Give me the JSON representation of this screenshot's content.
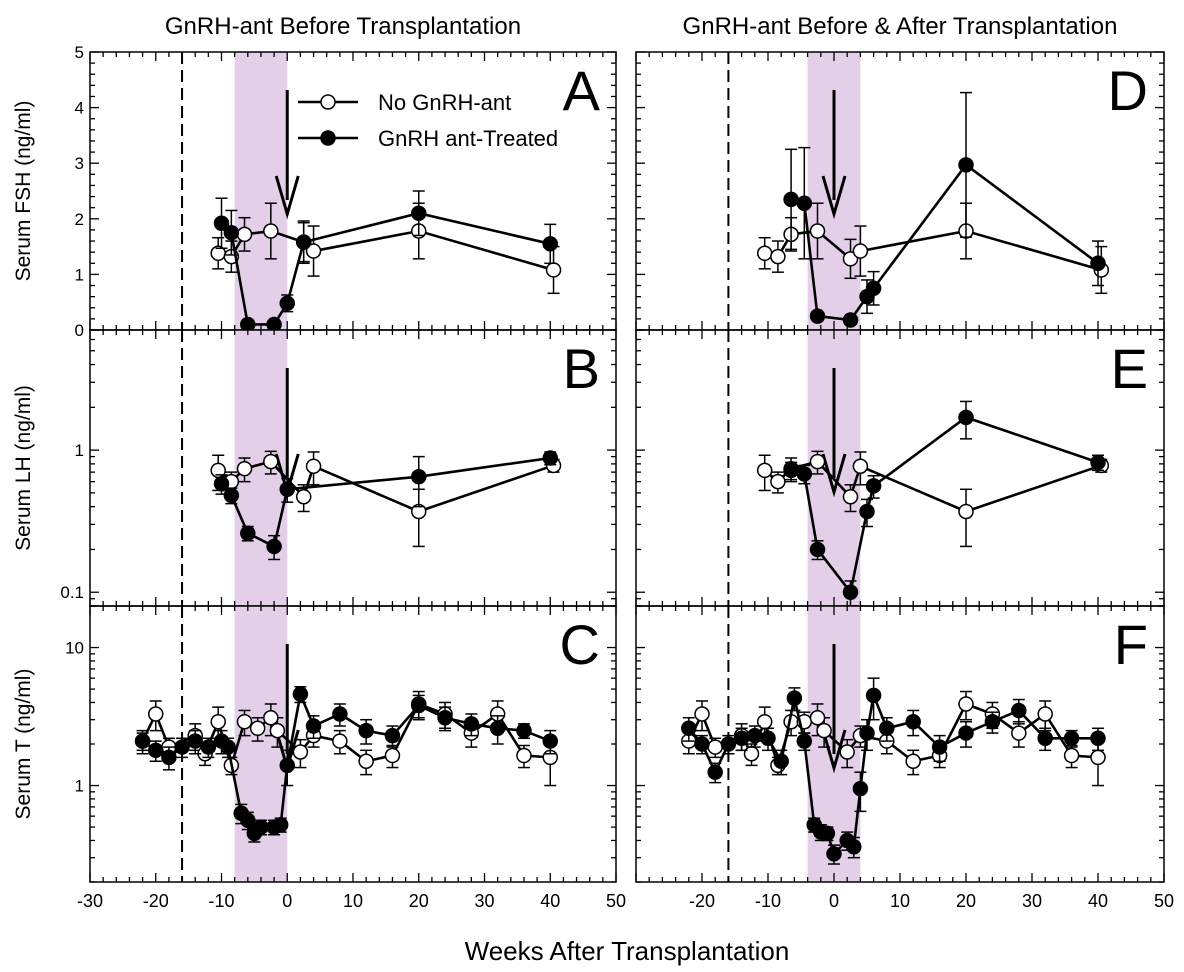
{
  "figure": {
    "title_left": "GnRH-ant Before Transplantation",
    "title_right": "GnRH-ant Before & After Transplantation",
    "xlabel": "Weeks After Transplantation",
    "legend": {
      "open": "No GnRH-ant",
      "filled": "GnRH ant-Treated"
    },
    "colors": {
      "shade": "#e3cfe8",
      "line": "#000000",
      "open_fill": "#ffffff",
      "filled_fill": "#000000"
    }
  },
  "chart_data": [
    {
      "type": "line",
      "panel": "A",
      "ylabel": "Serum FSH (ng/ml)",
      "yscale": "linear",
      "xlim": [
        -30,
        50
      ],
      "ylim": [
        0,
        5
      ],
      "yticks": [
        0,
        1,
        2,
        3,
        4,
        5
      ],
      "shade": [
        -8,
        0
      ],
      "vline": -16,
      "arrow_x": 0,
      "series": [
        {
          "name": "No GnRH-ant",
          "marker": "open",
          "points": [
            [
              -10.5,
              1.38,
              0.28
            ],
            [
              -8.5,
              1.32,
              0.28
            ],
            [
              -6.5,
              1.72,
              0.3
            ],
            [
              -2.5,
              1.78,
              0.5
            ],
            [
              2.5,
              1.58,
              0.35
            ],
            [
              4,
              1.42,
              0.45
            ],
            [
              20,
              1.78,
              0.5
            ],
            [
              40.5,
              1.08,
              0.42
            ]
          ]
        },
        {
          "name": "GnRH ant-Treated",
          "marker": "filled",
          "points": [
            [
              -10,
              1.92,
              0.45
            ],
            [
              -8.5,
              1.75,
              0.4
            ],
            [
              -6,
              0.1,
              0.05
            ],
            [
              -2,
              0.1,
              0.05
            ],
            [
              0,
              0.48,
              0.15
            ],
            [
              2.5,
              1.58,
              0.38
            ],
            [
              20,
              2.1,
              0.4
            ],
            [
              40,
              1.55,
              0.35
            ]
          ]
        }
      ]
    },
    {
      "type": "line",
      "panel": "B",
      "ylabel": "Serum LH (ng/ml)",
      "yscale": "log",
      "xlim": [
        -30,
        50
      ],
      "ylim": [
        0.08,
        7
      ],
      "yticks": [
        0.1,
        1
      ],
      "shade": [
        -8,
        0
      ],
      "vline": -16,
      "arrow_x": 0,
      "series": [
        {
          "name": "No GnRH-ant",
          "marker": "open",
          "points": [
            [
              -10.5,
              0.72,
              0.2
            ],
            [
              -8.5,
              0.6,
              0.1
            ],
            [
              -6.5,
              0.74,
              0.14
            ],
            [
              -2.5,
              0.83,
              0.15
            ],
            [
              2.5,
              0.47,
              0.1
            ],
            [
              4,
              0.77,
              0.2
            ],
            [
              20,
              0.37,
              0.16
            ],
            [
              40.5,
              0.78,
              0.08
            ]
          ]
        },
        {
          "name": "GnRH ant-Treated",
          "marker": "filled",
          "points": [
            [
              -10,
              0.58,
              0.09
            ],
            [
              -8.5,
              0.48,
              0.06
            ],
            [
              -6,
              0.26,
              0.03
            ],
            [
              -2,
              0.21,
              0.04
            ],
            [
              0,
              0.53,
              0.1
            ],
            [
              20,
              0.65,
              0.25
            ],
            [
              40,
              0.88,
              0.09
            ]
          ]
        }
      ]
    },
    {
      "type": "line",
      "panel": "C",
      "ylabel": "Serum T (ng/ml)",
      "yscale": "log",
      "xlim": [
        -30,
        50
      ],
      "ylim": [
        0.2,
        20
      ],
      "yticks": [
        1,
        10
      ],
      "shade": [
        -8,
        0
      ],
      "vline": -16,
      "arrow_x": 0,
      "series": [
        {
          "name": "No GnRH-ant",
          "marker": "open",
          "points": [
            [
              -22,
              2.1,
              0.4
            ],
            [
              -20,
              3.3,
              0.8
            ],
            [
              -18,
              1.9,
              0.3
            ],
            [
              -14,
              2.3,
              0.5
            ],
            [
              -12.5,
              1.7,
              0.3
            ],
            [
              -10.5,
              2.9,
              0.8
            ],
            [
              -8.5,
              1.4,
              0.2
            ],
            [
              -6.5,
              2.9,
              0.6
            ],
            [
              -4.5,
              2.6,
              0.5
            ],
            [
              -2.5,
              3.1,
              0.8
            ],
            [
              -1.5,
              2.5,
              0.6
            ],
            [
              2,
              1.75,
              0.4
            ],
            [
              4,
              2.3,
              0.4
            ],
            [
              8,
              2.1,
              0.4
            ],
            [
              12,
              1.5,
              0.3
            ],
            [
              16,
              1.65,
              0.3
            ],
            [
              20,
              3.9,
              0.9
            ],
            [
              24,
              3.3,
              0.7
            ],
            [
              28,
              2.4,
              0.5
            ],
            [
              32,
              3.3,
              0.8
            ],
            [
              36,
              1.65,
              0.3
            ],
            [
              40,
              1.6,
              0.6
            ]
          ]
        },
        {
          "name": "GnRH ant-Treated",
          "marker": "filled",
          "points": [
            [
              -22,
              2.1,
              0.3
            ],
            [
              -20,
              1.8,
              0.3
            ],
            [
              -18,
              1.6,
              0.3
            ],
            [
              -16,
              1.9,
              0.3
            ],
            [
              -14,
              2.1,
              0.4
            ],
            [
              -12,
              1.9,
              0.3
            ],
            [
              -10,
              2.1,
              0.4
            ],
            [
              -9,
              1.9,
              0.3
            ],
            [
              -7,
              0.63,
              0.1
            ],
            [
              -6,
              0.56,
              0.08
            ],
            [
              -5,
              0.45,
              0.06
            ],
            [
              -4,
              0.5,
              0.06
            ],
            [
              -2,
              0.5,
              0.06
            ],
            [
              -1,
              0.52,
              0.06
            ],
            [
              0,
              1.4,
              0.4
            ],
            [
              2,
              4.6,
              0.6
            ],
            [
              4,
              2.7,
              0.5
            ],
            [
              8,
              3.3,
              0.6
            ],
            [
              12,
              2.5,
              0.5
            ],
            [
              16,
              2.3,
              0.4
            ],
            [
              20,
              3.8,
              0.7
            ],
            [
              24,
              3.1,
              0.6
            ],
            [
              28,
              2.8,
              0.5
            ],
            [
              32,
              2.6,
              0.6
            ],
            [
              36,
              2.5,
              0.3
            ],
            [
              40,
              2.1,
              0.4
            ]
          ]
        }
      ]
    },
    {
      "type": "line",
      "panel": "D",
      "ylabel": "",
      "yscale": "linear",
      "xlim": [
        -30,
        50
      ],
      "ylim": [
        0,
        5
      ],
      "yticks": [
        0,
        1,
        2,
        3,
        4,
        5
      ],
      "shade": [
        -4,
        4
      ],
      "vline": -16,
      "arrow_x": 0,
      "series": [
        {
          "name": "No GnRH-ant",
          "marker": "open",
          "points": [
            [
              -10.5,
              1.38,
              0.28
            ],
            [
              -8.5,
              1.32,
              0.28
            ],
            [
              -6.5,
              1.72,
              0.3
            ],
            [
              -2.5,
              1.78,
              0.5
            ],
            [
              2.5,
              1.28,
              0.35
            ],
            [
              4,
              1.42,
              0.45
            ],
            [
              20,
              1.78,
              0.5
            ],
            [
              40.5,
              1.08,
              0.42
            ]
          ]
        },
        {
          "name": "GnRH ant-Treated",
          "marker": "filled",
          "points": [
            [
              -6.5,
              2.35,
              0.9
            ],
            [
              -4.5,
              2.28,
              1.0
            ],
            [
              -2.5,
              0.25,
              0.05
            ],
            [
              2.5,
              0.18,
              0.05
            ],
            [
              5,
              0.6,
              0.3
            ],
            [
              6,
              0.75,
              0.3
            ],
            [
              20,
              2.97,
              1.3
            ],
            [
              40,
              1.2,
              0.4
            ]
          ]
        }
      ]
    },
    {
      "type": "line",
      "panel": "E",
      "ylabel": "",
      "yscale": "log",
      "xlim": [
        -30,
        50
      ],
      "ylim": [
        0.08,
        7
      ],
      "yticks": [
        0.1,
        1
      ],
      "shade": [
        -4,
        4
      ],
      "vline": -16,
      "arrow_x": 0,
      "series": [
        {
          "name": "No GnRH-ant",
          "marker": "open",
          "points": [
            [
              -10.5,
              0.72,
              0.2
            ],
            [
              -8.5,
              0.6,
              0.1
            ],
            [
              -6.5,
              0.74,
              0.14
            ],
            [
              -2.5,
              0.83,
              0.15
            ],
            [
              2.5,
              0.47,
              0.1
            ],
            [
              4,
              0.77,
              0.2
            ],
            [
              20,
              0.37,
              0.16
            ],
            [
              40.5,
              0.78,
              0.08
            ]
          ]
        },
        {
          "name": "GnRH ant-Treated",
          "marker": "filled",
          "points": [
            [
              -6.5,
              0.72,
              0.1
            ],
            [
              -4.5,
              0.68,
              0.1
            ],
            [
              -2.5,
              0.2,
              0.03
            ],
            [
              2.5,
              0.1,
              0.02
            ],
            [
              5,
              0.37,
              0.08
            ],
            [
              6,
              0.56,
              0.1
            ],
            [
              20,
              1.7,
              0.5
            ],
            [
              40,
              0.82,
              0.1
            ]
          ]
        }
      ]
    },
    {
      "type": "line",
      "panel": "F",
      "ylabel": "",
      "yscale": "log",
      "xlim": [
        -30,
        50
      ],
      "ylim": [
        0.2,
        20
      ],
      "yticks": [
        1,
        10
      ],
      "shade": [
        -4,
        4
      ],
      "vline": -16,
      "arrow_x": 0,
      "series": [
        {
          "name": "No GnRH-ant",
          "marker": "open",
          "points": [
            [
              -22,
              2.1,
              0.4
            ],
            [
              -20,
              3.3,
              0.8
            ],
            [
              -18,
              1.9,
              0.3
            ],
            [
              -14,
              2.3,
              0.5
            ],
            [
              -12.5,
              1.7,
              0.3
            ],
            [
              -10.5,
              2.9,
              0.8
            ],
            [
              -8.5,
              1.4,
              0.2
            ],
            [
              -6.5,
              2.9,
              0.6
            ],
            [
              -4.5,
              2.9,
              0.5
            ],
            [
              -2.5,
              3.1,
              0.8
            ],
            [
              -1.5,
              2.5,
              0.6
            ],
            [
              2,
              1.75,
              0.4
            ],
            [
              4,
              2.3,
              0.4
            ],
            [
              8,
              2.1,
              0.4
            ],
            [
              12,
              1.5,
              0.3
            ],
            [
              16,
              1.65,
              0.3
            ],
            [
              20,
              3.9,
              0.9
            ],
            [
              24,
              3.3,
              0.7
            ],
            [
              28,
              2.4,
              0.5
            ],
            [
              32,
              3.3,
              0.8
            ],
            [
              36,
              1.65,
              0.3
            ],
            [
              40,
              1.6,
              0.6
            ]
          ]
        },
        {
          "name": "GnRH ant-Treated",
          "marker": "filled",
          "points": [
            [
              -22,
              2.6,
              0.5
            ],
            [
              -20,
              2.0,
              0.3
            ],
            [
              -18,
              1.25,
              0.2
            ],
            [
              -16,
              2.0,
              0.3
            ],
            [
              -14,
              2.2,
              0.4
            ],
            [
              -12,
              2.3,
              0.4
            ],
            [
              -10,
              2.2,
              0.4
            ],
            [
              -8,
              1.5,
              0.3
            ],
            [
              -6,
              4.3,
              0.8
            ],
            [
              -4.5,
              2.1,
              0.3
            ],
            [
              -3,
              0.52,
              0.06
            ],
            [
              -2,
              0.46,
              0.06
            ],
            [
              -1,
              0.45,
              0.05
            ],
            [
              0,
              0.32,
              0.05
            ],
            [
              2,
              0.4,
              0.06
            ],
            [
              3,
              0.36,
              0.06
            ],
            [
              4,
              0.95,
              0.3
            ],
            [
              5,
              2.4,
              0.6
            ],
            [
              6,
              4.5,
              1.5
            ],
            [
              8,
              2.6,
              0.5
            ],
            [
              12,
              2.9,
              0.6
            ],
            [
              16,
              1.9,
              0.4
            ],
            [
              20,
              2.4,
              0.5
            ],
            [
              24,
              2.9,
              0.5
            ],
            [
              28,
              3.5,
              0.7
            ],
            [
              32,
              2.2,
              0.4
            ],
            [
              36,
              2.2,
              0.3
            ],
            [
              40,
              2.2,
              0.4
            ]
          ]
        }
      ]
    }
  ]
}
